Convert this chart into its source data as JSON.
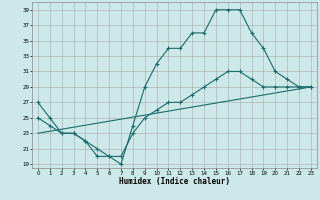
{
  "xlabel": "Humidex (Indice chaleur)",
  "bg_color": "#cce8e8",
  "grid_color": "#aaaaaa",
  "line_color": "#1a6b6b",
  "line1": {
    "x": [
      0,
      1,
      2,
      3,
      4,
      5,
      6,
      7,
      8,
      9,
      10,
      11,
      12,
      13,
      14,
      15,
      16,
      17,
      18,
      19,
      20,
      21,
      22,
      23
    ],
    "y": [
      27,
      25,
      23,
      23,
      22,
      20,
      20,
      19,
      24,
      29,
      32,
      34,
      34,
      36,
      36,
      39,
      39,
      39,
      36,
      34,
      31,
      30,
      29,
      29
    ]
  },
  "line2": {
    "x": [
      0,
      1,
      2,
      3,
      4,
      5,
      6,
      7,
      8,
      9,
      10,
      11,
      12,
      13,
      14,
      15,
      16,
      17,
      18,
      19,
      20,
      21,
      22,
      23
    ],
    "y": [
      25,
      24,
      23,
      23,
      22,
      21,
      20,
      20,
      23,
      25,
      26,
      27,
      27,
      28,
      29,
      30,
      31,
      31,
      30,
      29,
      29,
      29,
      29,
      29
    ]
  },
  "line3": {
    "x": [
      0,
      23
    ],
    "y": [
      23,
      29
    ]
  },
  "xlim": [
    -0.5,
    23.5
  ],
  "ylim": [
    18.5,
    40
  ],
  "yticks": [
    19,
    21,
    23,
    25,
    27,
    29,
    31,
    33,
    35,
    37,
    39
  ],
  "xticks": [
    0,
    1,
    2,
    3,
    4,
    5,
    6,
    7,
    8,
    9,
    10,
    11,
    12,
    13,
    14,
    15,
    16,
    17,
    18,
    19,
    20,
    21,
    22,
    23
  ]
}
